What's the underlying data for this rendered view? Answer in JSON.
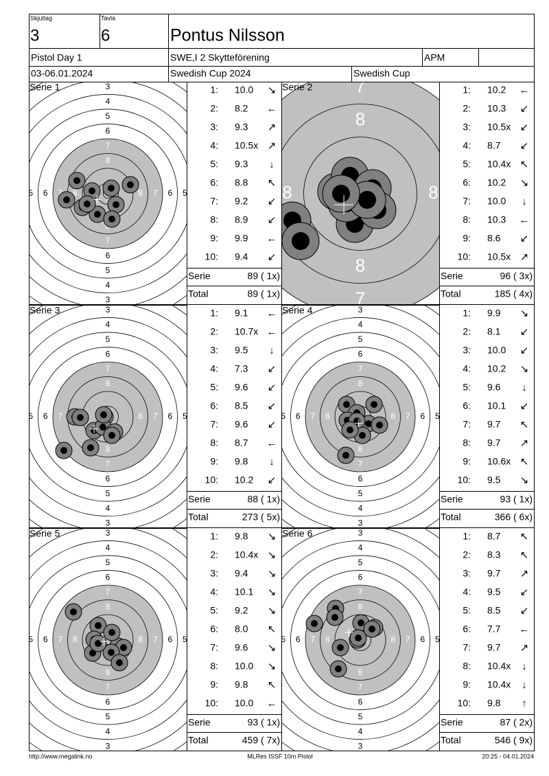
{
  "header": {
    "skjutlag_label": "Skjutlag",
    "skjutlag": "3",
    "tavla_label": "Tavla",
    "tavla": "6",
    "name": "Pontus Nilsson",
    "event": "Pistol Day 1",
    "club": "SWE,I 2 Skytteförening",
    "class": "APM",
    "date": "03-06.01.2024",
    "competition": "Swedish Cup 2024",
    "cup": "Swedish Cup"
  },
  "ring_labels": [
    "3",
    "4",
    "5",
    "6",
    "7",
    "8"
  ],
  "series": [
    {
      "title": "Serie 1",
      "shots": [
        {
          "no": "1:",
          "value": "10.0",
          "arrow": "↘"
        },
        {
          "no": "2:",
          "value": "8.2",
          "arrow": "←"
        },
        {
          "no": "3:",
          "value": "9.3",
          "arrow": "↗"
        },
        {
          "no": "4:",
          "value": "10.5x",
          "arrow": "↗"
        },
        {
          "no": "5:",
          "value": "9.3",
          "arrow": "↓"
        },
        {
          "no": "6:",
          "value": "8.8",
          "arrow": "↖"
        },
        {
          "no": "7:",
          "value": "9.2",
          "arrow": "↙"
        },
        {
          "no": "8:",
          "value": "8.9",
          "arrow": "↙"
        },
        {
          "no": "9:",
          "value": "9.9",
          "arrow": "←"
        },
        {
          "no": "10:",
          "value": "9.4",
          "arrow": "↙"
        }
      ],
      "serie_label": "Serie",
      "serie_total": "89 ( 1x)",
      "total_label": "Total",
      "total": "89 ( 1x)"
    },
    {
      "title": "Serie 2",
      "shots": [
        {
          "no": "1:",
          "value": "10.2",
          "arrow": "←"
        },
        {
          "no": "2:",
          "value": "10.3",
          "arrow": "↙"
        },
        {
          "no": "3:",
          "value": "10.5x",
          "arrow": "↙"
        },
        {
          "no": "4:",
          "value": "8.7",
          "arrow": "↙"
        },
        {
          "no": "5:",
          "value": "10.4x",
          "arrow": "↖"
        },
        {
          "no": "6:",
          "value": "10.2",
          "arrow": "↘"
        },
        {
          "no": "7:",
          "value": "10.0",
          "arrow": "↓"
        },
        {
          "no": "8:",
          "value": "10.3",
          "arrow": "←"
        },
        {
          "no": "9:",
          "value": "8.6",
          "arrow": "↙"
        },
        {
          "no": "10:",
          "value": "10.5x",
          "arrow": "↗"
        }
      ],
      "serie_label": "Serie",
      "serie_total": "96 ( 3x)",
      "total_label": "Total",
      "total": "185 ( 4x)"
    },
    {
      "title": "Serie 3",
      "shots": [
        {
          "no": "1:",
          "value": "9.1",
          "arrow": "←"
        },
        {
          "no": "2:",
          "value": "10.7x",
          "arrow": "←"
        },
        {
          "no": "3:",
          "value": "9.5",
          "arrow": "↓"
        },
        {
          "no": "4:",
          "value": "7.3",
          "arrow": "↙"
        },
        {
          "no": "5:",
          "value": "9.6",
          "arrow": "↙"
        },
        {
          "no": "6:",
          "value": "8.5",
          "arrow": "↙"
        },
        {
          "no": "7:",
          "value": "9.6",
          "arrow": "↙"
        },
        {
          "no": "8:",
          "value": "8.7",
          "arrow": "←"
        },
        {
          "no": "9:",
          "value": "9.8",
          "arrow": "↓"
        },
        {
          "no": "10:",
          "value": "10.2",
          "arrow": "↙"
        }
      ],
      "serie_label": "Serie",
      "serie_total": "88 ( 1x)",
      "total_label": "Total",
      "total": "273 ( 5x)"
    },
    {
      "title": "Serie 4",
      "shots": [
        {
          "no": "1:",
          "value": "9.9",
          "arrow": "↘"
        },
        {
          "no": "2:",
          "value": "8.1",
          "arrow": "↙"
        },
        {
          "no": "3:",
          "value": "10.0",
          "arrow": "↙"
        },
        {
          "no": "4:",
          "value": "10.2",
          "arrow": "↘"
        },
        {
          "no": "5:",
          "value": "9.6",
          "arrow": "↓"
        },
        {
          "no": "6:",
          "value": "10.1",
          "arrow": "↙"
        },
        {
          "no": "7:",
          "value": "9.7",
          "arrow": "↖"
        },
        {
          "no": "8:",
          "value": "9.7",
          "arrow": "↗"
        },
        {
          "no": "9:",
          "value": "10.6x",
          "arrow": "↖"
        },
        {
          "no": "10:",
          "value": "9.5",
          "arrow": "↘"
        }
      ],
      "serie_label": "Serie",
      "serie_total": "93 ( 1x)",
      "total_label": "Total",
      "total": "366 ( 6x)"
    },
    {
      "title": "Serie 5",
      "shots": [
        {
          "no": "1:",
          "value": "9.8",
          "arrow": "↘"
        },
        {
          "no": "2:",
          "value": "10.4x",
          "arrow": "↘"
        },
        {
          "no": "3:",
          "value": "9.4",
          "arrow": "↘"
        },
        {
          "no": "4:",
          "value": "10.1",
          "arrow": "↘"
        },
        {
          "no": "5:",
          "value": "9.2",
          "arrow": "↘"
        },
        {
          "no": "6:",
          "value": "8.0",
          "arrow": "↖"
        },
        {
          "no": "7:",
          "value": "9.6",
          "arrow": "↘"
        },
        {
          "no": "8:",
          "value": "10.0",
          "arrow": "↘"
        },
        {
          "no": "9:",
          "value": "9.8",
          "arrow": "↖"
        },
        {
          "no": "10:",
          "value": "10.0",
          "arrow": "←"
        }
      ],
      "serie_label": "Serie",
      "serie_total": "93 ( 1x)",
      "total_label": "Total",
      "total": "459 ( 7x)"
    },
    {
      "title": "Serie 6",
      "shots": [
        {
          "no": "1:",
          "value": "8.7",
          "arrow": "↖"
        },
        {
          "no": "2:",
          "value": "8.3",
          "arrow": "↖"
        },
        {
          "no": "3:",
          "value": "9.7",
          "arrow": "↗"
        },
        {
          "no": "4:",
          "value": "9.5",
          "arrow": "↙"
        },
        {
          "no": "5:",
          "value": "8.5",
          "arrow": "↙"
        },
        {
          "no": "6:",
          "value": "7.7",
          "arrow": "←"
        },
        {
          "no": "7:",
          "value": "9.7",
          "arrow": "↗"
        },
        {
          "no": "8:",
          "value": "10.4x",
          "arrow": "↓"
        },
        {
          "no": "9:",
          "value": "10.4x",
          "arrow": "↓"
        },
        {
          "no": "10:",
          "value": "9.8",
          "arrow": "↑"
        }
      ],
      "serie_label": "Serie",
      "serie_total": "87 ( 2x)",
      "total_label": "Total",
      "total": "546 ( 9x)"
    }
  ],
  "footer": {
    "url": "http://www.megalink.no",
    "software": "MLRes ISSF 10m Pistol",
    "timestamp": "20:25 - 04.01.2024"
  }
}
